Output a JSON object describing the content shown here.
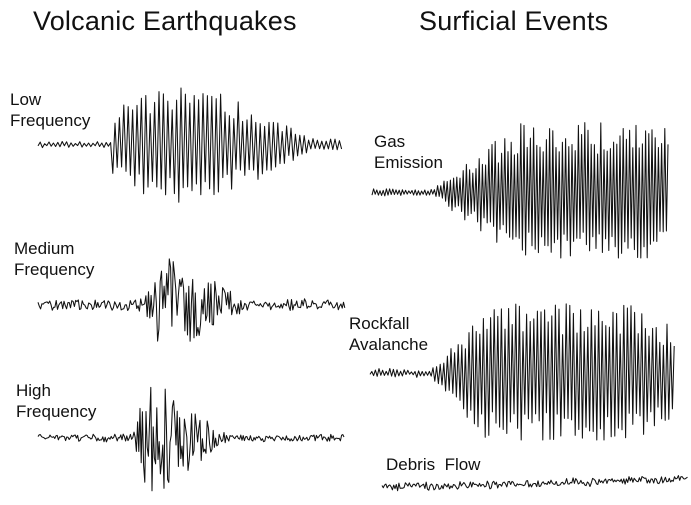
{
  "headings": {
    "volcanic": "Volcanic Earthquakes",
    "surficial": "Surficial Events"
  },
  "events": {
    "low_frequency": {
      "label_lines": [
        "Low",
        "Frequency"
      ]
    },
    "medium_frequency": {
      "label_lines": [
        "Medium",
        "Frequency"
      ]
    },
    "high_frequency": {
      "label_lines": [
        "High",
        "Frequency"
      ]
    },
    "gas_emission": {
      "label_lines": [
        "Gas",
        "Emission"
      ]
    },
    "rockfall_avalanche": {
      "label_lines": [
        "Rockfall",
        "Avalanche"
      ]
    },
    "debris_flow": {
      "label_lines": [
        "Debris  Flow"
      ]
    }
  }
}
